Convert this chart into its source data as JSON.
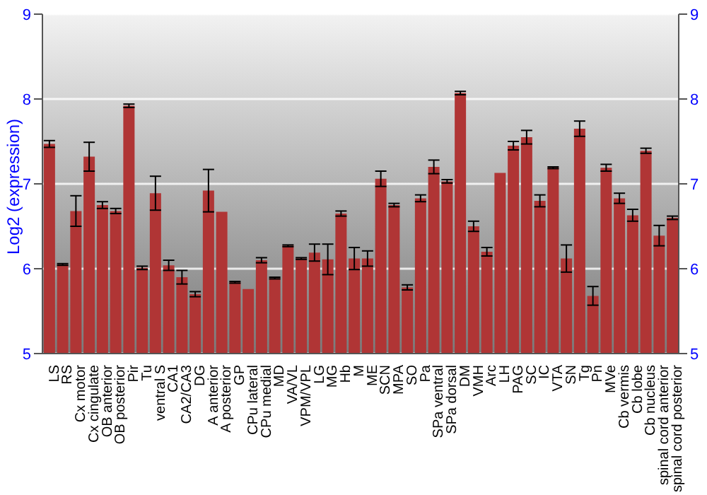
{
  "chart_data": {
    "type": "bar",
    "ylabel": "Log2 (expression)",
    "categories": [
      "LS",
      "RS",
      "Cx motor",
      "Cx cingulate",
      "OB anterior",
      "OB posterior",
      "Pir",
      "Tu",
      "ventral S",
      "CA1",
      "CA2/CA3",
      "DG",
      "A anterior",
      "A posterior",
      "GP",
      "CPu lateral",
      "CPu medial",
      "MD",
      "VA/VL",
      "VPM/VPL",
      "LG",
      "MG",
      "Hb",
      "M",
      "ME",
      "SCN",
      "MPA",
      "SO",
      "Pa",
      "SPa ventral",
      "SPa dorsal",
      "DM",
      "VMH",
      "Arc",
      "LH",
      "PAG",
      "SC",
      "IC",
      "VTA",
      "SN",
      "Tg",
      "Pn",
      "MVe",
      "Cb vermis",
      "Cb lobe",
      "Cb nucleus",
      "spinal cord anterior",
      "spinal cord posterior"
    ],
    "values": [
      7.47,
      6.05,
      6.68,
      7.32,
      6.75,
      6.68,
      7.92,
      6.01,
      6.89,
      6.04,
      5.9,
      5.7,
      6.92,
      6.67,
      5.84,
      5.76,
      6.1,
      5.89,
      6.27,
      6.12,
      6.19,
      6.11,
      6.65,
      6.12,
      6.12,
      7.06,
      6.75,
      5.78,
      6.83,
      7.2,
      7.03,
      8.07,
      6.5,
      6.2,
      7.13,
      7.45,
      7.55,
      6.8,
      7.19,
      6.12,
      7.65,
      5.68,
      7.19,
      6.83,
      6.63,
      7.39,
      6.39,
      6.6
    ],
    "errors": [
      0.04,
      0.01,
      0.18,
      0.17,
      0.04,
      0.03,
      0.02,
      0.02,
      0.2,
      0.06,
      0.08,
      0.03,
      0.25,
      0,
      0.01,
      0,
      0.03,
      0.01,
      0.01,
      0.01,
      0.1,
      0.18,
      0.03,
      0.13,
      0.09,
      0.09,
      0.02,
      0.03,
      0.04,
      0.08,
      0.02,
      0.02,
      0.06,
      0.05,
      0,
      0.05,
      0.08,
      0.07,
      0.01,
      0.16,
      0.09,
      0.11,
      0.04,
      0.06,
      0.07,
      0.03,
      0.12,
      0.02
    ],
    "color": "#b03535",
    "ylim": [
      5,
      9
    ],
    "yticks": [
      5,
      6,
      7,
      8,
      9
    ],
    "y2lim": [
      5,
      9
    ],
    "y2ticks": [
      5,
      6,
      7,
      8,
      9
    ],
    "grid": "y"
  }
}
